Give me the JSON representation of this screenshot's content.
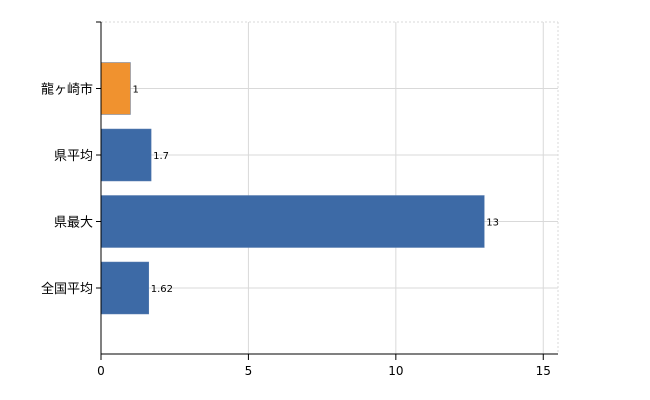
{
  "chart_data": {
    "type": "bar",
    "orientation": "horizontal",
    "categories": [
      "龍ヶ崎市",
      "県平均",
      "県最大",
      "全国平均"
    ],
    "values": [
      1,
      1.7,
      13,
      1.62
    ],
    "value_labels": [
      "1",
      "1.7",
      "13",
      "1.62"
    ],
    "bar_colors": [
      "#f0922f",
      "#3d6aa6",
      "#3d6aa6",
      "#3d6aa6"
    ],
    "xlim": [
      0,
      15.5
    ],
    "xticks": [
      0,
      5,
      10,
      15
    ],
    "xtick_labels": [
      "0",
      "5",
      "10",
      "15"
    ],
    "grid": true,
    "title": "",
    "xlabel": "",
    "ylabel": ""
  }
}
